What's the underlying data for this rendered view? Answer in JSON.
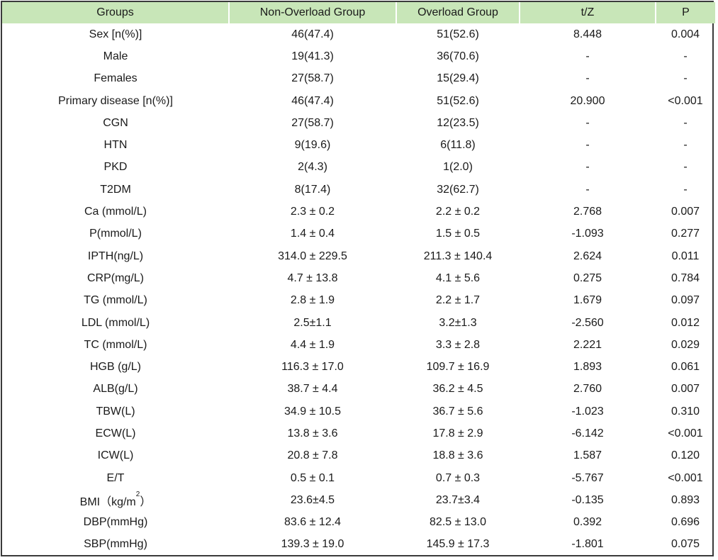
{
  "table": {
    "headers": [
      "Groups",
      "Non-Overload Group",
      "Overload Group",
      "t/Z",
      "P"
    ],
    "rows": [
      {
        "label": "Sex [n(%)]",
        "non_overload": "46(47.4)",
        "overload": "51(52.6)",
        "tz": "8.448",
        "p": "0.004"
      },
      {
        "label": "Male",
        "non_overload": "19(41.3)",
        "overload": "36(70.6)",
        "tz": "-",
        "p": "-"
      },
      {
        "label": "Females",
        "non_overload": "27(58.7)",
        "overload": "15(29.4)",
        "tz": "-",
        "p": "-"
      },
      {
        "label": "Primary disease [n(%)]",
        "non_overload": "46(47.4)",
        "overload": "51(52.6)",
        "tz": "20.900",
        "p": "<0.001"
      },
      {
        "label": "CGN",
        "non_overload": "27(58.7)",
        "overload": "12(23.5)",
        "tz": "-",
        "p": "-"
      },
      {
        "label": "HTN",
        "non_overload": "9(19.6)",
        "overload": "6(11.8)",
        "tz": "-",
        "p": "-"
      },
      {
        "label": "PKD",
        "non_overload": "2(4.3)",
        "overload": "1(2.0)",
        "tz": "-",
        "p": "-"
      },
      {
        "label": "T2DM",
        "non_overload": "8(17.4)",
        "overload": "32(62.7)",
        "tz": "-",
        "p": "-"
      },
      {
        "label": "Ca (mmol/L)",
        "non_overload": "2.3 ± 0.2",
        "overload": "2.2 ± 0.2",
        "tz": "2.768",
        "p": "0.007"
      },
      {
        "label": "P(mmol/L)",
        "non_overload": "1.4 ± 0.4",
        "overload": "1.5 ± 0.5",
        "tz": "-1.093",
        "p": "0.277"
      },
      {
        "label": "IPTH(ng/L)",
        "non_overload": "314.0 ± 229.5",
        "overload": "211.3 ± 140.4",
        "tz": "2.624",
        "p": "0.011"
      },
      {
        "label": "CRP(mg/L)",
        "non_overload": "4.7 ± 13.8",
        "overload": "4.1 ± 5.6",
        "tz": "0.275",
        "p": "0.784"
      },
      {
        "label": "TG (mmol/L)",
        "non_overload": "2.8 ± 1.9",
        "overload": "2.2 ± 1.7",
        "tz": "1.679",
        "p": "0.097"
      },
      {
        "label": "LDL (mmol/L)",
        "non_overload": "2.5±1.1",
        "overload": "3.2±1.3",
        "tz": "-2.560",
        "p": "0.012"
      },
      {
        "label": "TC (mmol/L)",
        "non_overload": "4.4 ± 1.9",
        "overload": "3.3 ± 2.8",
        "tz": "2.221",
        "p": "0.029"
      },
      {
        "label": "HGB (g/L)",
        "non_overload": "116.3 ± 17.0",
        "overload": "109.7 ± 16.9",
        "tz": "1.893",
        "p": "0.061"
      },
      {
        "label": "ALB(g/L)",
        "non_overload": "38.7 ± 4.4",
        "overload": "36.2 ± 4.5",
        "tz": "2.760",
        "p": "0.007"
      },
      {
        "label": "TBW(L)",
        "non_overload": "34.9 ± 10.5",
        "overload": "36.7 ± 5.6",
        "tz": "-1.023",
        "p": "0.310"
      },
      {
        "label": "ECW(L)",
        "non_overload": "13.8 ± 3.6",
        "overload": "17.8 ± 2.9",
        "tz": "-6.142",
        "p": "<0.001"
      },
      {
        "label": "ICW(L)",
        "non_overload": "20.8 ± 7.8",
        "overload": "18.8 ± 3.6",
        "tz": "1.587",
        "p": "0.120"
      },
      {
        "label": "E/T",
        "non_overload": "0.5 ± 0.1",
        "overload": "0.7 ± 0.3",
        "tz": "-5.767",
        "p": "<0.001"
      },
      {
        "label": "BMI（kg/m",
        "label_sup": "2",
        "label_suffix": "）",
        "non_overload": "23.6±4.5",
        "overload": "23.7±3.4",
        "tz": "-0.135",
        "p": "0.893"
      },
      {
        "label": "DBP(mmHg)",
        "non_overload": "83.6 ± 12.4",
        "overload": "82.5 ± 13.0",
        "tz": "0.392",
        "p": "0.696"
      },
      {
        "label": "SBP(mmHg)",
        "non_overload": "139.3 ± 19.0",
        "overload": "145.9 ± 17.3",
        "tz": "-1.801",
        "p": "0.075"
      }
    ]
  },
  "colors": {
    "header_bg": "#c8e6b8",
    "border": "#3a3a3a"
  }
}
